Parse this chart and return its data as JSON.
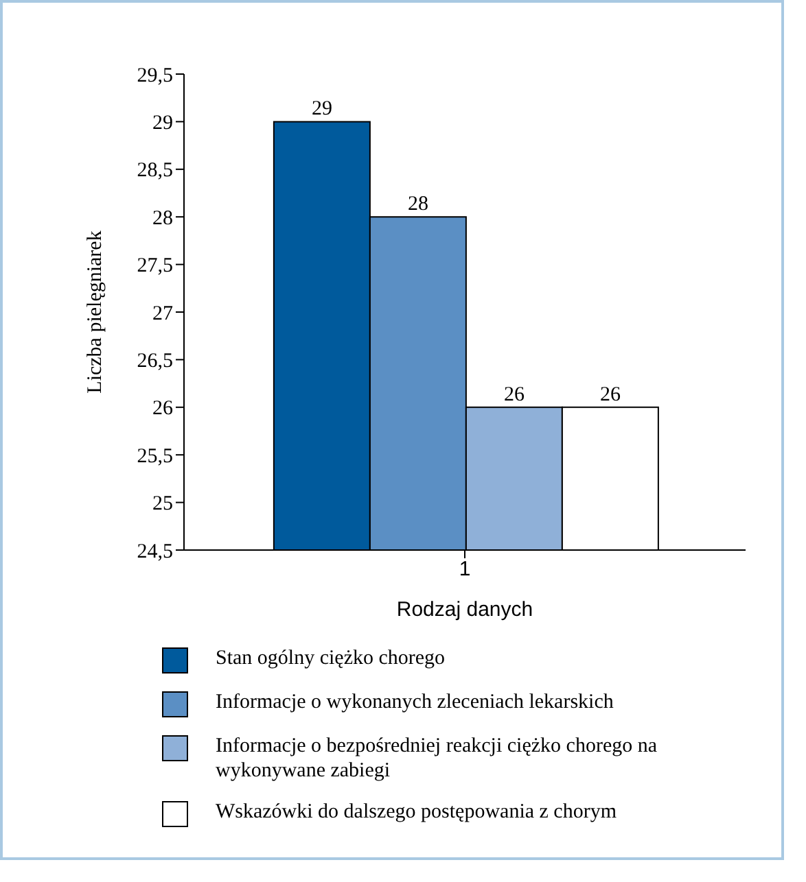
{
  "chart_data": {
    "type": "bar",
    "xlabel": "Rodzaj danych",
    "ylabel": "Liczba pielęgniarek",
    "categories": [
      "1"
    ],
    "series": [
      {
        "name": "Stan ogólny ciężko chorego",
        "color": "#005a9c",
        "values": [
          29
        ]
      },
      {
        "name": "Informacje o wykonanych zleceniach lekarskich",
        "color": "#5b8fc4",
        "values": [
          28
        ]
      },
      {
        "name": "Informacje o bezpośredniej reakcji ciężko chorego na wykonywane zabiegi",
        "color": "#8fb0d8",
        "values": [
          26
        ]
      },
      {
        "name": "Wskazówki do dalszego postępowania z chorym",
        "color": "#ffffff",
        "values": [
          26
        ]
      }
    ],
    "ylim": [
      24.5,
      29.5
    ],
    "yticks": [
      {
        "value": 24.5,
        "label": "24,5"
      },
      25,
      {
        "value": 25.5,
        "label": "25,5"
      },
      26,
      {
        "value": 26.5,
        "label": "26,5"
      },
      27,
      {
        "value": 27.5,
        "label": "27,5"
      },
      28,
      {
        "value": 28.5,
        "label": "28,5"
      },
      29,
      {
        "value": 29.5,
        "label": "29,5"
      }
    ],
    "data_labels": true,
    "grid": false,
    "legend": "bottom"
  }
}
